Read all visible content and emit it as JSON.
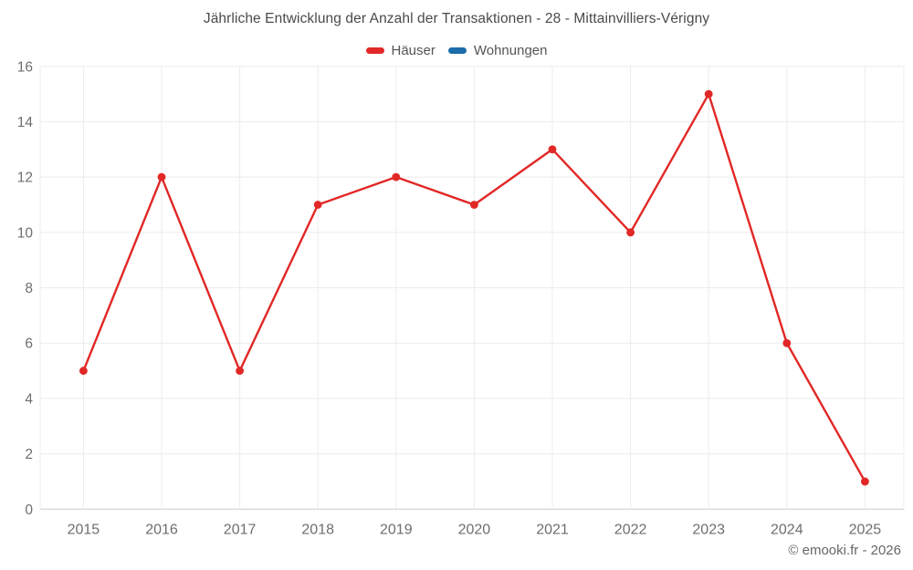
{
  "chart_data": {
    "type": "line",
    "title": "Jährliche Entwicklung der Anzahl der Transaktionen - 28 - Mittainvilliers-Vérigny",
    "categories": [
      "2015",
      "2016",
      "2017",
      "2018",
      "2019",
      "2020",
      "2021",
      "2022",
      "2023",
      "2024",
      "2025"
    ],
    "series": [
      {
        "name": "Häuser",
        "color": "#e12826",
        "values": [
          5,
          12,
          5,
          11,
          12,
          11,
          13,
          10,
          15,
          6,
          1
        ]
      },
      {
        "name": "Wohnungen",
        "color": "#1b6ca8",
        "values": []
      }
    ],
    "xlabel": "",
    "ylabel": "",
    "ylim": [
      0,
      16
    ],
    "y_ticks": [
      0,
      2,
      4,
      6,
      8,
      10,
      12,
      14,
      16
    ],
    "grid": true,
    "legend_position": "top",
    "colors": {
      "gridline": "#ececec",
      "axis_line": "#c9c9c9",
      "tick_label": "#6e6e6e",
      "title_text": "#4a4a4a"
    },
    "footer": "© emooki.fr - 2026"
  }
}
